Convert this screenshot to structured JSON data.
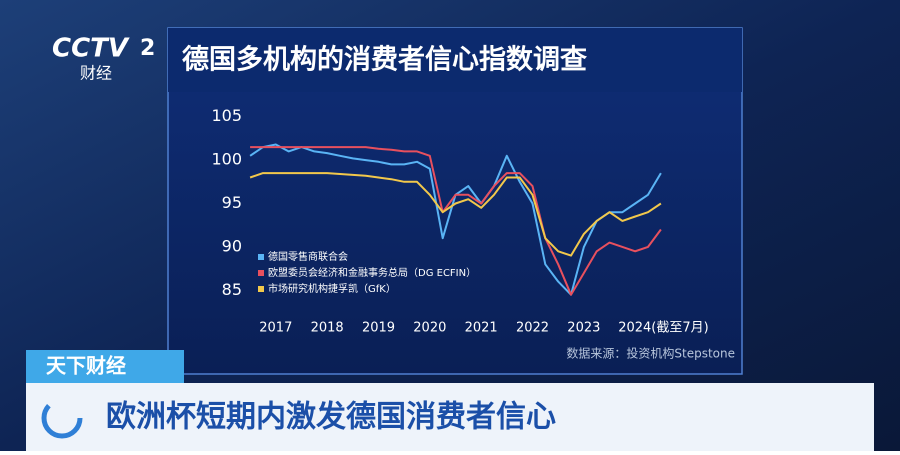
{
  "channel": {
    "logo": "CCTV",
    "number": "2",
    "name": "财经"
  },
  "program": "天下财经",
  "headline": "欧洲杯短期内激发德国消费者信心",
  "source": "数据来源：投资机构Stepstone",
  "chart_data": {
    "type": "line",
    "title": "德国多机构的消费者信心指数调查",
    "x": [
      2016.5,
      2016.75,
      2017,
      2017.25,
      2017.5,
      2017.75,
      2018,
      2018.25,
      2018.5,
      2018.75,
      2019,
      2019.25,
      2019.5,
      2019.75,
      2020,
      2020.25,
      2020.5,
      2020.75,
      2021,
      2021.25,
      2021.5,
      2021.75,
      2022,
      2022.25,
      2022.5,
      2022.75,
      2023,
      2023.25,
      2023.5,
      2023.75,
      2024,
      2024.25,
      2024.5
    ],
    "series": [
      {
        "name": "德国零售商联合会",
        "color": "#5ab4f5",
        "values": [
          100.5,
          101.5,
          101.8,
          101,
          101.5,
          101,
          100.8,
          100.5,
          100.2,
          100,
          99.8,
          99.5,
          99.5,
          99.8,
          99,
          91,
          96,
          97,
          95,
          97,
          100.5,
          97.5,
          95,
          88,
          86,
          84.5,
          90,
          93,
          94,
          94,
          95,
          96,
          98.5
        ]
      },
      {
        "name": "欧盟委员会经济和金融事务总局（DG ECFIN）",
        "color": "#e8505e",
        "values": [
          101.5,
          101.5,
          101.5,
          101.5,
          101.5,
          101.5,
          101.5,
          101.5,
          101.5,
          101.5,
          101.3,
          101.2,
          101,
          101,
          100.5,
          94,
          96,
          96,
          95,
          97,
          98.5,
          98.5,
          97,
          91,
          88,
          84.5,
          87,
          89.5,
          90.5,
          90,
          89.5,
          90,
          92
        ]
      },
      {
        "name": "市场研究机构捷孚凯（GfK）",
        "color": "#f2c84b",
        "values": [
          98,
          98.5,
          98.5,
          98.5,
          98.5,
          98.5,
          98.5,
          98.4,
          98.3,
          98.2,
          98,
          97.8,
          97.5,
          97.5,
          96,
          94,
          95,
          95.5,
          94.5,
          96,
          98,
          98,
          96,
          91,
          89.5,
          89,
          91.5,
          93,
          94,
          93,
          93.5,
          94,
          95
        ]
      }
    ],
    "xlim": [
      2016.4,
      2024.6
    ],
    "xticks": [
      2017,
      2018,
      2019,
      2020,
      2021,
      2022,
      2023,
      {
        "value": 2024,
        "label": "2024(截至7月)"
      }
    ],
    "ylim": [
      84,
      106
    ],
    "yticks": [
      85,
      90,
      95,
      100,
      105
    ],
    "grid": false,
    "legend": "lower-left"
  }
}
